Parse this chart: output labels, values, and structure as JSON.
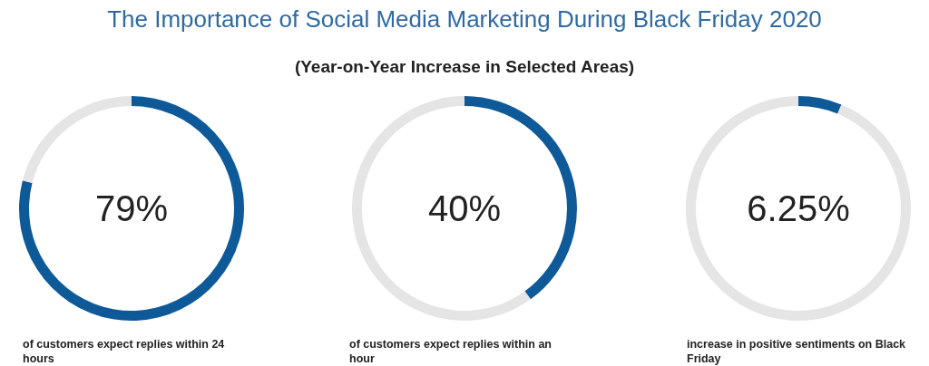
{
  "chart_data": [
    {
      "type": "donut",
      "title": "The Importance of Social Media Marketing During Black Friday 2020",
      "categories": [
        null,
        null
      ],
      "values": [
        79,
        21
      ],
      "colors": [
        "#0e5a99",
        "#e5e5e5"
      ],
      "value_labels": [
        "79%",
        null
      ],
      "annotations": [
        "of customers expect replies within 24 hours"
      ]
    },
    {
      "type": "donut",
      "subtitle": "(Year-on-Year Increase in Selected Areas)",
      "categories": [
        null,
        null
      ],
      "values": [
        40,
        60
      ],
      "colors": [
        "#0e5a99",
        "#e5e5e5"
      ],
      "value_labels": [
        "40%",
        null
      ],
      "annotations": [
        "of customers expect replies within an hour"
      ]
    },
    {
      "type": "donut",
      "categories": [
        null,
        null
      ],
      "values": [
        6.25,
        93.75
      ],
      "colors": [
        "#0e5a99",
        "#e5e5e5"
      ],
      "value_labels": [
        "6.25%",
        null
      ],
      "annotations": [
        "increase in positive sentiments on Black Friday"
      ]
    }
  ]
}
